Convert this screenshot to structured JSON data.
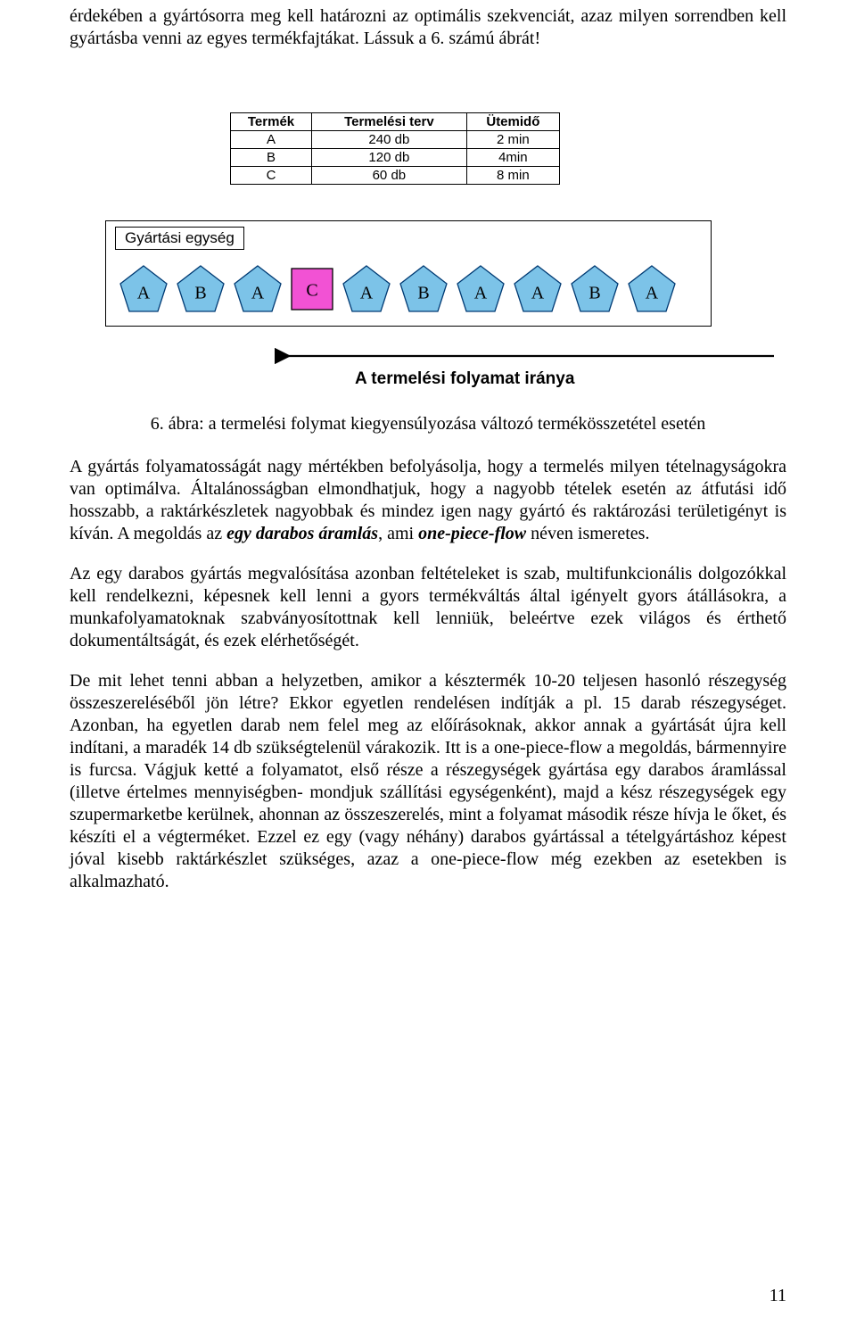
{
  "intro": "érdekében a gyártósorra meg kell határozni az optimális szekvenciát, azaz milyen sorrendben kell gyártásba venni az egyes termékfajtákat. Lássuk a 6. számú ábrát!",
  "table": {
    "headers": [
      "Termék",
      "Termelési terv",
      "Ütemidő"
    ],
    "rows": [
      [
        "A",
        "240 db",
        "2 min"
      ],
      [
        "B",
        "120 db",
        "4min"
      ],
      [
        "C",
        "60 db",
        "8 min"
      ]
    ],
    "border_color": "#000000",
    "bg": "#ffffff",
    "header_weight": "bold",
    "font_size": 15
  },
  "diagram": {
    "unit_title": "Gyártási egység",
    "shapes": [
      {
        "type": "pentagon",
        "label": "A",
        "fill": "#7cc3e8",
        "stroke": "#003a73"
      },
      {
        "type": "pentagon",
        "label": "B",
        "fill": "#7cc3e8",
        "stroke": "#003a73"
      },
      {
        "type": "pentagon",
        "label": "A",
        "fill": "#7cc3e8",
        "stroke": "#003a73"
      },
      {
        "type": "square",
        "label": "C",
        "fill": "#f252d4",
        "stroke": "#000000"
      },
      {
        "type": "pentagon",
        "label": "A",
        "fill": "#7cc3e8",
        "stroke": "#003a73"
      },
      {
        "type": "pentagon",
        "label": "B",
        "fill": "#7cc3e8",
        "stroke": "#003a73"
      },
      {
        "type": "pentagon",
        "label": "A",
        "fill": "#7cc3e8",
        "stroke": "#003a73"
      },
      {
        "type": "pentagon",
        "label": "A",
        "fill": "#7cc3e8",
        "stroke": "#003a73"
      },
      {
        "type": "pentagon",
        "label": "B",
        "fill": "#7cc3e8",
        "stroke": "#003a73"
      },
      {
        "type": "pentagon",
        "label": "A",
        "fill": "#7cc3e8",
        "stroke": "#003a73"
      }
    ],
    "arrow": {
      "length": 560,
      "color": "#000000"
    },
    "flow_caption": "A termelési folyamat iránya",
    "box_border": "#000000"
  },
  "fig_caption": "6. ábra: a termelési folymat kiegyensúlyozása változó termékösszetétel esetén",
  "p1_a": "A gyártás folyamatosságát nagy mértékben befolyásolja, hogy a termelés milyen tételnagyságokra van optimálva. Általánosságban elmondhatjuk, hogy a nagyobb tételek esetén az átfutási idő hosszabb, a raktárkészletek nagyobbak és mindez igen nagy gyártó és raktározási területigényt is kíván. A megoldás az ",
  "p1_em1": "egy darabos áramlás",
  "p1_b": ", ami ",
  "p1_em2": "one-piece-flow",
  "p1_c": " néven ismeretes.",
  "p2": "Az egy darabos gyártás megvalósítása azonban feltételeket is szab, multifunkcionális dolgozókkal kell rendelkezni, képesnek kell lenni a gyors termékváltás által igényelt gyors átállásokra, a munkafolyamatoknak szabványosítottnak kell lenniük, beleértve ezek világos és érthető dokumentáltságát, és ezek elérhetőségét.",
  "p3": "De mit lehet tenni abban a helyzetben, amikor a késztermék 10-20 teljesen hasonló részegység összeszereléséből jön létre? Ekkor egyetlen rendelésen indítják a pl. 15 darab részegységet. Azonban, ha egyetlen darab nem felel meg az előírásoknak, akkor annak a gyártását újra kell indítani, a maradék 14 db szükségtelenül várakozik. Itt is a one-piece-flow a megoldás, bármennyire is furcsa. Vágjuk ketté a folyamatot, első része a részegységek gyártása egy darabos áramlással (illetve értelmes mennyiségben- mondjuk szállítási egységenként), majd a kész részegységek egy szupermarketbe kerülnek, ahonnan az összeszerelés, mint a folyamat második része hívja le őket, és készíti el a végterméket. Ezzel ez egy (vagy néhány) darabos gyártással a tételgyártáshoz képest jóval kisebb raktárkészlet szükséges, azaz a one-piece-flow még ezekben az esetekben is alkalmazható.",
  "page_number": "11"
}
